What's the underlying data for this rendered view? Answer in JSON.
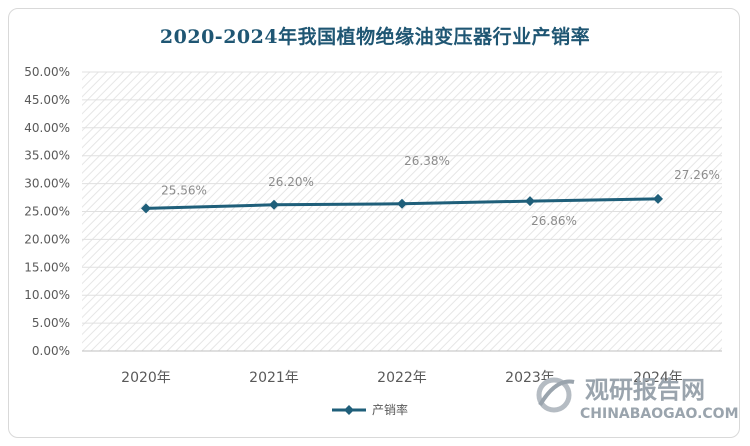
{
  "chart_data": {
    "type": "line",
    "title": "2020-2024年我国植物绝缘油变压器行业产销率",
    "categories": [
      "2020年",
      "2021年",
      "2022年",
      "2023年",
      "2024年"
    ],
    "series": [
      {
        "name": "产销率",
        "values": [
          25.56,
          26.2,
          26.38,
          26.86,
          27.26
        ],
        "data_labels": [
          "25.56%",
          "26.20%",
          "26.38%",
          "26.86%",
          "27.26%"
        ],
        "color": "#1f5f7a"
      }
    ],
    "ylim": [
      0,
      50
    ],
    "ytick_values": [
      0,
      5,
      10,
      15,
      20,
      25,
      30,
      35,
      40,
      45,
      50
    ],
    "ytick_labels": [
      "0.00%",
      "5.00%",
      "10.00%",
      "15.00%",
      "20.00%",
      "25.00%",
      "30.00%",
      "35.00%",
      "40.00%",
      "45.00%",
      "50.00%"
    ],
    "xlabel": "",
    "ylabel": "",
    "legend_position": "bottom",
    "plot_background": "diagonal hatch"
  },
  "watermark": {
    "text_cn": "观研报告网",
    "text_en": "CHINABAOGAO.COM"
  }
}
